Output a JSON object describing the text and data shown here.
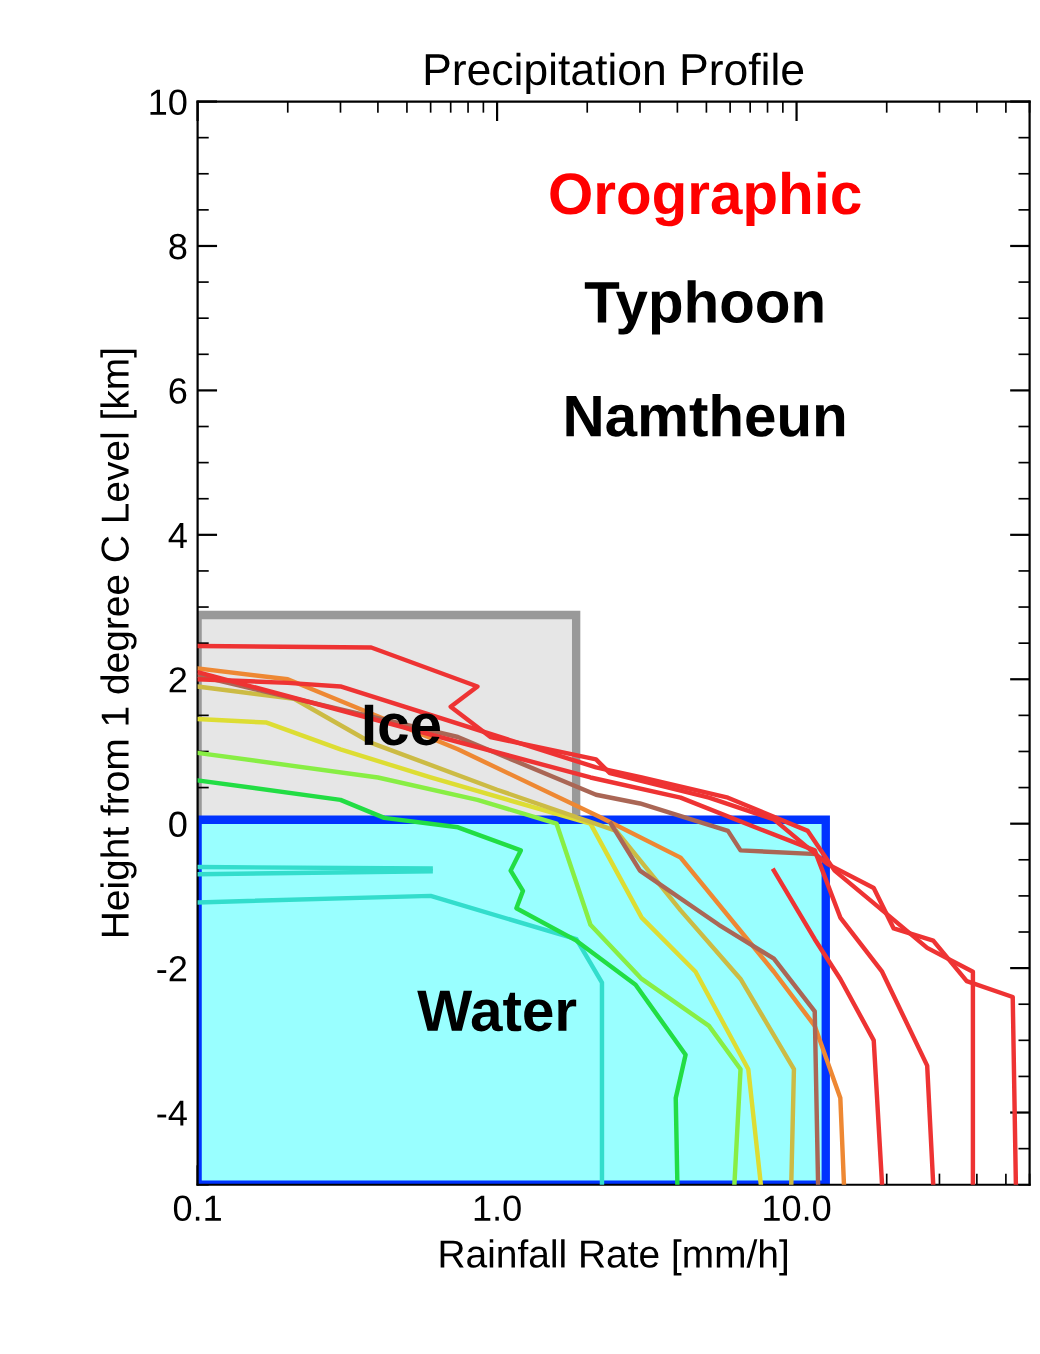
{
  "chart_data": {
    "type": "line",
    "title": "Precipitation Profile",
    "xlabel": "Rainfall Rate [mm/h]",
    "ylabel": "Height from 1 degree C Level [km]",
    "log": "x",
    "xlim": [
      0.1,
      60
    ],
    "ylim": [
      -5,
      10
    ],
    "xticks": [
      {
        "value": 0.1,
        "label": "0.1"
      },
      {
        "value": 1,
        "label": "1.0"
      },
      {
        "value": 10,
        "label": "10.0"
      }
    ],
    "yticks": [
      -4,
      -2,
      0,
      2,
      4,
      6,
      8,
      10
    ],
    "grid": false,
    "legend": false,
    "series": [
      {
        "color": "#33ddcc",
        "x": [
          0.1,
          0.6
        ],
        "values": [
          -0.6,
          -0.62
        ]
      },
      {
        "color": "#33ddcc",
        "x": [
          0.1,
          0.6
        ],
        "values": [
          -0.7,
          -0.66
        ]
      },
      {
        "color": "#33ddcc",
        "x": [
          0.1,
          0.6,
          1.84,
          2.24,
          2.24
        ],
        "values": [
          -1.09,
          -1.0,
          -1.6,
          -2.2,
          -5
        ]
      },
      {
        "color": "#22dd44",
        "x": [
          0.1,
          0.3,
          0.42,
          0.74,
          1.2,
          1.11,
          1.22,
          1.16,
          1.84,
          2.9,
          4.26,
          3.95,
          4.0
        ],
        "values": [
          0.6,
          0.33,
          0.08,
          -0.05,
          -0.37,
          -0.65,
          -0.93,
          -1.17,
          -1.62,
          -2.23,
          -3.2,
          -3.8,
          -5
        ]
      },
      {
        "color": "#88ee44",
        "x": [
          0.1,
          0.4,
          0.86,
          1.58,
          2.05,
          3.04,
          5.1,
          6.5,
          6.2
        ],
        "values": [
          0.98,
          0.64,
          0.33,
          0,
          -1.4,
          -2.15,
          -2.8,
          -3.4,
          -5
        ]
      },
      {
        "color": "#dddd33",
        "x": [
          0.1,
          0.17,
          0.3,
          0.6,
          2.05,
          3.04,
          4.6,
          6.9,
          7.6
        ],
        "values": [
          1.45,
          1.4,
          1.03,
          0.64,
          0,
          -1.3,
          -2.05,
          -3.4,
          -5
        ]
      },
      {
        "color": "#ccbb44",
        "x": [
          0.1,
          0.21,
          0.38,
          1.0,
          2.5,
          4.1,
          6.5,
          9.8,
          9.6
        ],
        "values": [
          1.9,
          1.73,
          1.12,
          0.47,
          -0.1,
          -1.2,
          -2.15,
          -3.4,
          -5
        ]
      },
      {
        "color": "#ee8833",
        "x": [
          0.1,
          0.2,
          0.74,
          2.24,
          4.1,
          8.4,
          11.5,
          14.0,
          14.4
        ],
        "values": [
          2.15,
          2.0,
          1.03,
          0.08,
          -0.47,
          -2.05,
          -2.8,
          -3.8,
          -5
        ]
      },
      {
        "color": "#aa6655",
        "x": [
          0.1,
          0.74,
          2.14,
          3.0,
          5.9,
          6.5,
          11.5
        ],
        "values": [
          2.05,
          1.2,
          0.4,
          0.28,
          -0.1,
          -0.37,
          -0.42
        ]
      },
      {
        "color": "#aa6655",
        "x": [
          2.4,
          3.0,
          5.5,
          8.4,
          11.5,
          11.8
        ],
        "values": [
          0,
          -0.65,
          -1.4,
          -1.87,
          -2.6,
          -5
        ]
      },
      {
        "color": "#ee3333",
        "x": [
          0.1,
          0.38,
          0.86,
          0.7,
          0.95,
          2.14,
          2.38,
          5.1,
          8.4,
          12.7,
          18.1,
          21.1,
          28.6,
          37,
          52.7,
          54
        ],
        "values": [
          2.46,
          2.44,
          1.9,
          1.62,
          1.2,
          0.89,
          0.7,
          0.36,
          0.06,
          -0.56,
          -0.89,
          -1.45,
          -1.62,
          -2.18,
          -2.4,
          -5
        ]
      },
      {
        "color": "#ee3333",
        "x": [
          0.1,
          0.2,
          0.3,
          2.14,
          3.04,
          5.9,
          10.9,
          13.4,
          18.1,
          27.3,
          38.8,
          38.8
        ],
        "values": [
          2.0,
          1.95,
          1.9,
          0.78,
          0.64,
          0.36,
          -0.1,
          -0.65,
          -1.1,
          -1.72,
          -2.05,
          -5
        ]
      },
      {
        "color": "#ee3333",
        "x": [
          0.1,
          2.05,
          4.1,
          7.6,
          11.5,
          14.0,
          19.3,
          27.3,
          28.6
        ],
        "values": [
          2.1,
          0.64,
          0.36,
          -0.08,
          -0.37,
          -1.3,
          -2.05,
          -3.35,
          -5
        ]
      },
      {
        "color": "#ee3333",
        "x": [
          8.4,
          11.5,
          14.0,
          18.1,
          19.3
        ],
        "values": [
          -0.65,
          -1.6,
          -2.15,
          -3.0,
          -5
        ]
      }
    ],
    "annotations": [
      "Orographic",
      "Typhoon",
      "Namtheun",
      "Ice",
      "Water"
    ]
  }
}
